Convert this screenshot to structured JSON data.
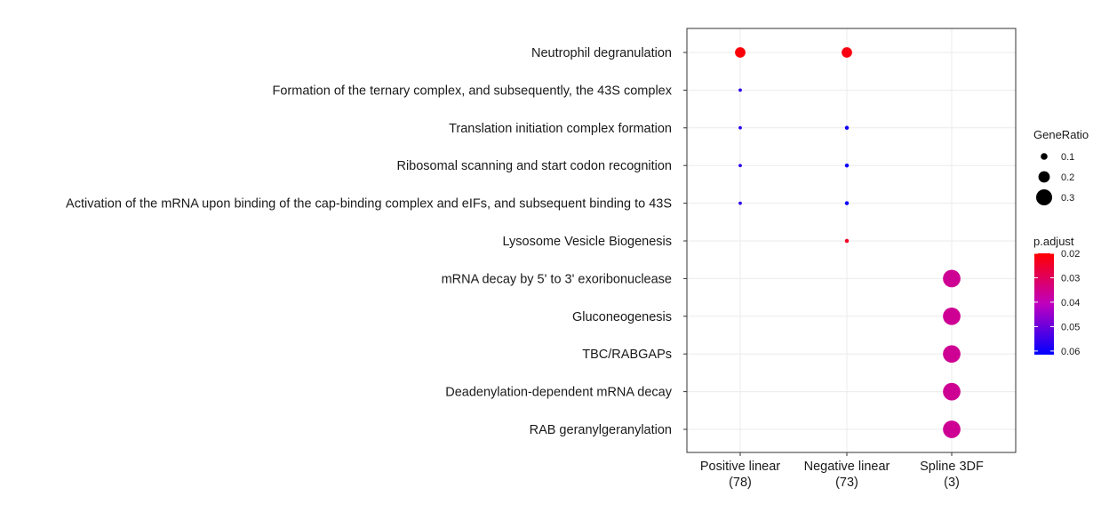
{
  "chart_data": {
    "type": "dot",
    "categories_y": [
      "Neutrophil degranulation",
      "Formation of the ternary complex, and subsequently, the 43S complex",
      "Translation initiation complex formation",
      "Ribosomal scanning and start codon recognition",
      "Activation of the mRNA upon binding of the cap-binding complex and eIFs, and subsequent binding to 43S",
      "Lysosome Vesicle Biogenesis",
      "mRNA decay by 5' to 3' exoribonuclease",
      "Gluconeogenesis",
      "TBC/RABGAPs",
      "Deadenylation-dependent mRNA decay",
      "RAB geranylgeranylation"
    ],
    "categories_x": [
      {
        "line1": "Positive linear",
        "line2": "(78)"
      },
      {
        "line1": "Negative linear",
        "line2": "(73)"
      },
      {
        "line1": "Spline 3DF",
        "line2": "(3)"
      }
    ],
    "points": [
      {
        "x": 0,
        "y": 0,
        "gene_ratio": 0.18,
        "p_adjust": 0.021
      },
      {
        "x": 1,
        "y": 0,
        "gene_ratio": 0.18,
        "p_adjust": 0.022
      },
      {
        "x": 0,
        "y": 1,
        "gene_ratio": 0.026,
        "p_adjust": 0.057
      },
      {
        "x": 0,
        "y": 2,
        "gene_ratio": 0.026,
        "p_adjust": 0.057
      },
      {
        "x": 1,
        "y": 2,
        "gene_ratio": 0.04,
        "p_adjust": 0.06
      },
      {
        "x": 0,
        "y": 3,
        "gene_ratio": 0.026,
        "p_adjust": 0.057
      },
      {
        "x": 1,
        "y": 3,
        "gene_ratio": 0.04,
        "p_adjust": 0.06
      },
      {
        "x": 0,
        "y": 4,
        "gene_ratio": 0.026,
        "p_adjust": 0.057
      },
      {
        "x": 1,
        "y": 4,
        "gene_ratio": 0.04,
        "p_adjust": 0.06
      },
      {
        "x": 1,
        "y": 5,
        "gene_ratio": 0.04,
        "p_adjust": 0.024
      },
      {
        "x": 2,
        "y": 6,
        "gene_ratio": 0.333,
        "p_adjust": 0.036
      },
      {
        "x": 2,
        "y": 7,
        "gene_ratio": 0.333,
        "p_adjust": 0.036
      },
      {
        "x": 2,
        "y": 8,
        "gene_ratio": 0.333,
        "p_adjust": 0.036
      },
      {
        "x": 2,
        "y": 9,
        "gene_ratio": 0.333,
        "p_adjust": 0.036
      },
      {
        "x": 2,
        "y": 10,
        "gene_ratio": 0.333,
        "p_adjust": 0.036
      }
    ],
    "size_legend": {
      "title": "GeneRatio",
      "values": [
        0.1,
        0.2,
        0.3
      ],
      "labels": [
        "0.1",
        "0.2",
        "0.3"
      ]
    },
    "color_legend": {
      "title": "p.adjust",
      "min": 0.02,
      "max": 0.0615,
      "breaks": [
        0.02,
        0.03,
        0.04,
        0.05,
        0.06
      ],
      "labels": [
        "0.02",
        "0.03",
        "0.04",
        "0.05",
        "0.06"
      ],
      "color_low_p": "#ff0000",
      "color_mid_p": "#bf00bf",
      "color_high_p": "#0000ff"
    },
    "grid": true
  }
}
